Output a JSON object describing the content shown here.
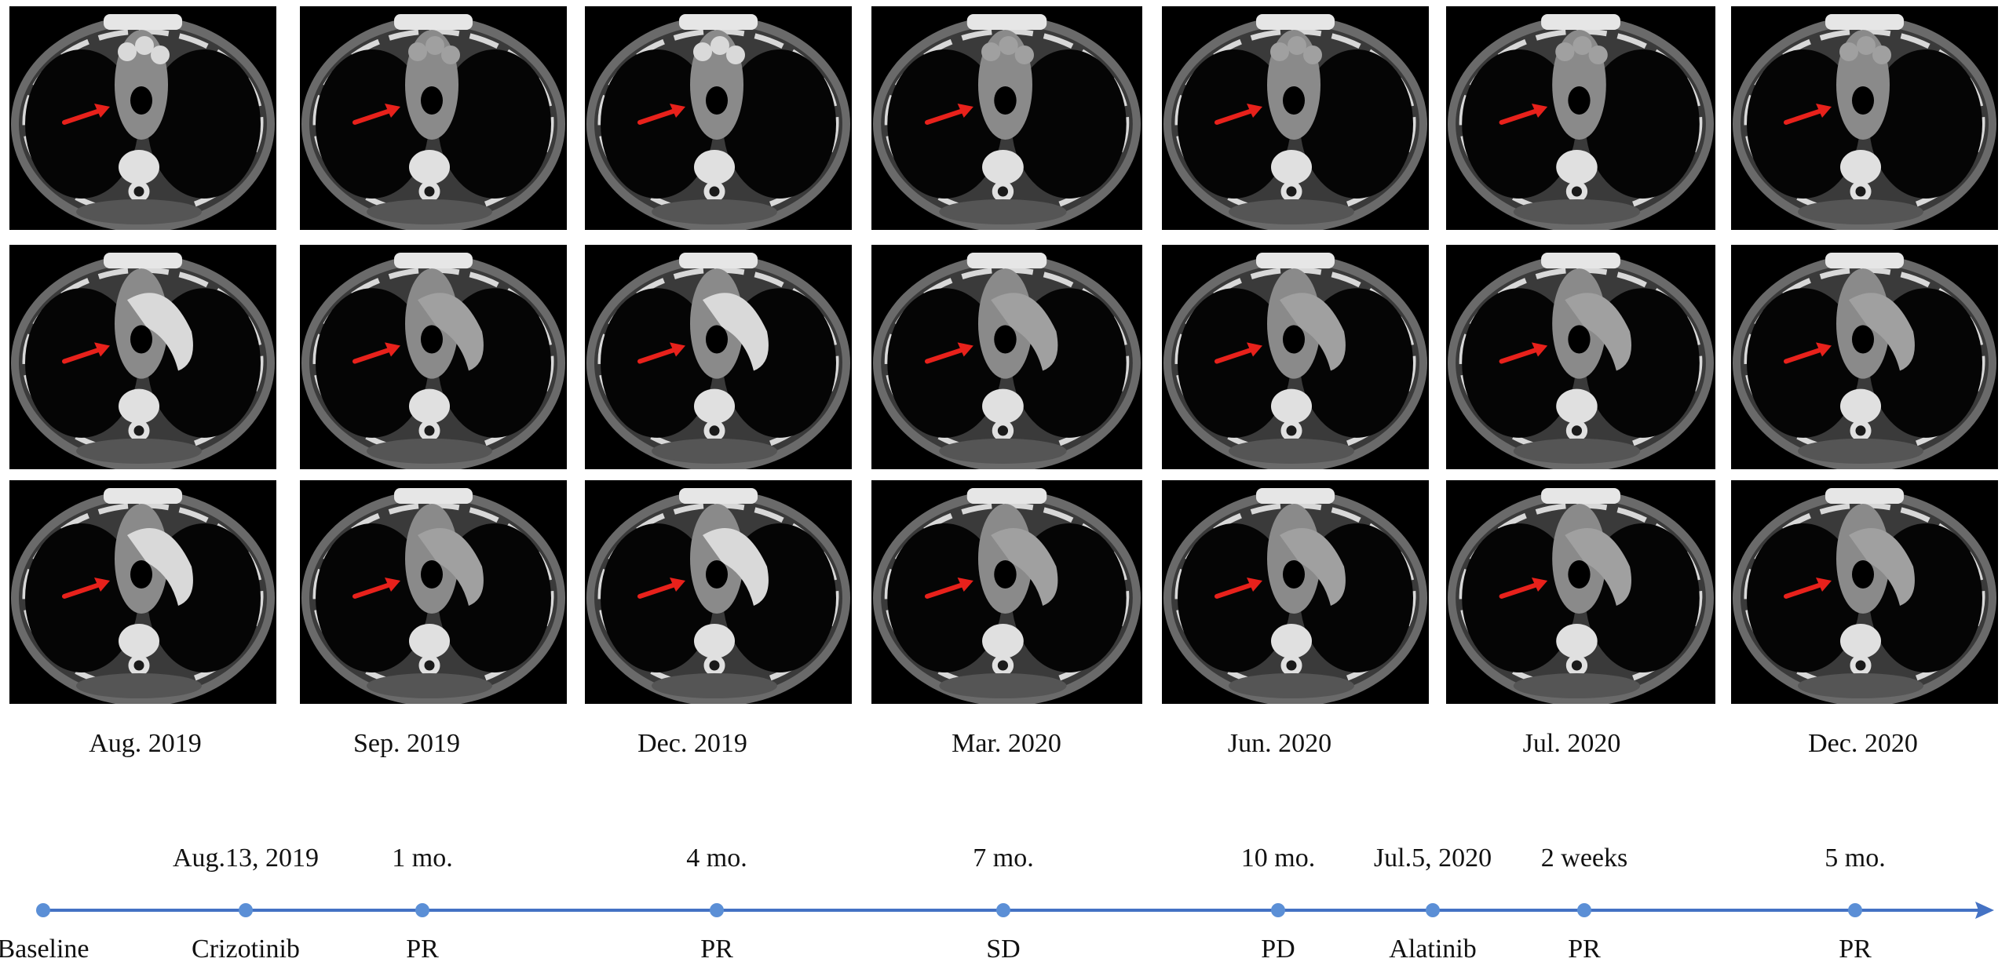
{
  "scan_columns": [
    {
      "date": "Aug. 2019"
    },
    {
      "date": "Sep. 2019"
    },
    {
      "date": "Dec. 2019"
    },
    {
      "date": "Mar. 2020"
    },
    {
      "date": "Jun. 2020"
    },
    {
      "date": "Jul. 2020"
    },
    {
      "date": "Dec. 2020"
    }
  ],
  "scan_rows": 3,
  "timeline": {
    "color": "#4472C4",
    "events": [
      {
        "top": "",
        "bottom": "Baseline"
      },
      {
        "top": "Aug.13, 2019",
        "bottom": "Crizotinib"
      },
      {
        "top": "1 mo.",
        "bottom": "PR"
      },
      {
        "top": "4 mo.",
        "bottom": "PR"
      },
      {
        "top": "7 mo.",
        "bottom": "SD"
      },
      {
        "top": "10 mo.",
        "bottom": "PD"
      },
      {
        "top": "Jul.5, 2020",
        "bottom": "Alatinib"
      },
      {
        "top": "2 weeks",
        "bottom": "PR"
      },
      {
        "top": "5 mo.",
        "bottom": "PR"
      }
    ]
  },
  "annotation_arrow_color": "#E8211B"
}
